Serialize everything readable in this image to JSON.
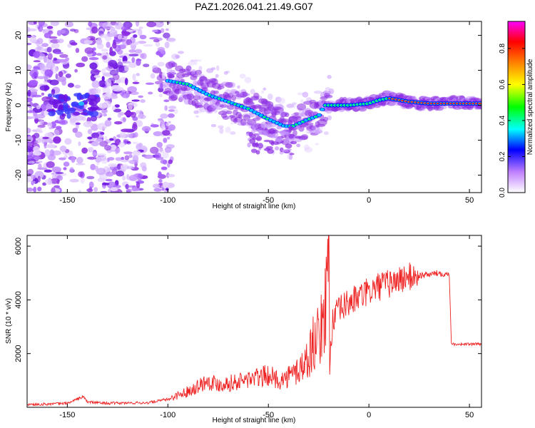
{
  "title": "PAZ1.2026.041.21.49.G07",
  "chart_data": [
    {
      "type": "heatmap",
      "xlabel": "Height of straight line (km)",
      "ylabel": "Frequency (Hz)",
      "xlim": [
        -170,
        56
      ],
      "ylim": [
        -25,
        24
      ],
      "x_ticks": [
        -150,
        -100,
        -50,
        0,
        50
      ],
      "y_ticks": [
        -20,
        -10,
        0,
        10,
        20
      ],
      "x_tick_labels": [
        "-150",
        "-100",
        "-50",
        "0",
        "50"
      ],
      "y_tick_labels": [
        "-20",
        "-10",
        "0",
        "10",
        "20"
      ],
      "ridge": {
        "x": [
          -100,
          -90,
          -80,
          -70,
          -60,
          -50,
          -42,
          -38,
          -30,
          -25,
          -22,
          -20,
          -10,
          0,
          5,
          10,
          20,
          30,
          40,
          56
        ],
        "y": [
          7,
          6,
          3,
          1,
          -1,
          -4,
          -6,
          -6,
          -4,
          -3,
          0,
          0,
          0,
          0.5,
          1.5,
          2,
          1,
          0.5,
          0.5,
          0.5
        ]
      },
      "colorbar": {
        "label": "Normalized spectral amplitude",
        "range": [
          0,
          0.95
        ],
        "ticks": [
          0.0,
          0.2,
          0.4,
          0.6,
          0.8
        ],
        "tick_labels": [
          "0.0",
          "0.2",
          "0.4",
          "0.6",
          "0.8"
        ],
        "colors": [
          "#ffffff",
          "#c080ff",
          "#0000ff",
          "#00ffff",
          "#00ff00",
          "#ffff00",
          "#ff8000",
          "#ff0000",
          "#ff00ff"
        ]
      },
      "color": "#000000"
    },
    {
      "type": "line",
      "xlabel": "Height of straight line (km)",
      "ylabel": "SNR (10 * v/v)",
      "xlim": [
        -170,
        56
      ],
      "ylim": [
        0,
        6400
      ],
      "x_ticks": [
        -150,
        -100,
        -50,
        0,
        50
      ],
      "y_ticks": [
        2000,
        4000,
        6000
      ],
      "x_tick_labels": [
        "-150",
        "-100",
        "-50",
        "0",
        "50"
      ],
      "y_tick_labels": [
        "2000",
        "4000",
        "6000"
      ],
      "series": [
        {
          "color": "#ee2222",
          "x": [
            -170,
            -160,
            -150,
            -142,
            -140,
            -130,
            -120,
            -110,
            -100,
            -95,
            -90,
            -85,
            -80,
            -75,
            -70,
            -65,
            -60,
            -55,
            -50,
            -45,
            -40,
            -35,
            -30,
            -28,
            -25,
            -23,
            -21,
            -20,
            -19.5,
            -18,
            -15,
            -10,
            -5,
            0,
            5,
            10,
            15,
            20,
            25,
            30,
            35,
            40,
            41,
            42,
            45,
            50,
            56
          ],
          "y": [
            100,
            120,
            150,
            400,
            200,
            150,
            160,
            170,
            300,
            450,
            600,
            800,
            1000,
            850,
            900,
            950,
            1050,
            1100,
            1200,
            1000,
            1100,
            1400,
            1800,
            2400,
            2600,
            3100,
            4300,
            6400,
            2000,
            3200,
            3600,
            3900,
            4100,
            4300,
            4500,
            4600,
            4750,
            4850,
            4900,
            4950,
            5000,
            4950,
            2400,
            2350,
            2350,
            2350,
            2350
          ]
        }
      ],
      "color": "#000000"
    }
  ]
}
